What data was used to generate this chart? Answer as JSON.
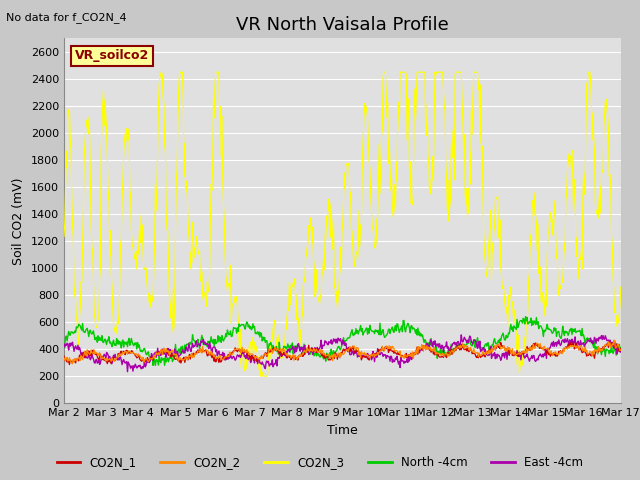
{
  "title": "VR North Vaisala Profile",
  "subtitle": "No data for f_CO2N_4",
  "ylabel": "Soil CO2 (mV)",
  "xlabel": "Time",
  "ylim": [
    0,
    2700
  ],
  "yticks": [
    0,
    200,
    400,
    600,
    800,
    1000,
    1200,
    1400,
    1600,
    1800,
    2000,
    2200,
    2400,
    2600
  ],
  "x_labels": [
    "Mar 2",
    "Mar 3",
    "Mar 4",
    "Mar 5",
    "Mar 6",
    "Mar 7",
    "Mar 8",
    "Mar 9",
    "Mar 10",
    "Mar 11",
    "Mar 12",
    "Mar 13",
    "Mar 14",
    "Mar 15",
    "Mar 16",
    "Mar 17"
  ],
  "legend_entries": [
    "CO2N_1",
    "CO2N_2",
    "CO2N_3",
    "North -4cm",
    "East -4cm"
  ],
  "legend_colors": [
    "#cc0000",
    "#ff8800",
    "#ffff00",
    "#00cc00",
    "#aa00aa"
  ],
  "sensor_label": "VR_soilco2",
  "fig_facecolor": "#c8c8c8",
  "plot_bg_color": "#e0e0e0",
  "grid_color": "#ffffff",
  "title_fontsize": 13,
  "label_fontsize": 9,
  "tick_fontsize": 8
}
